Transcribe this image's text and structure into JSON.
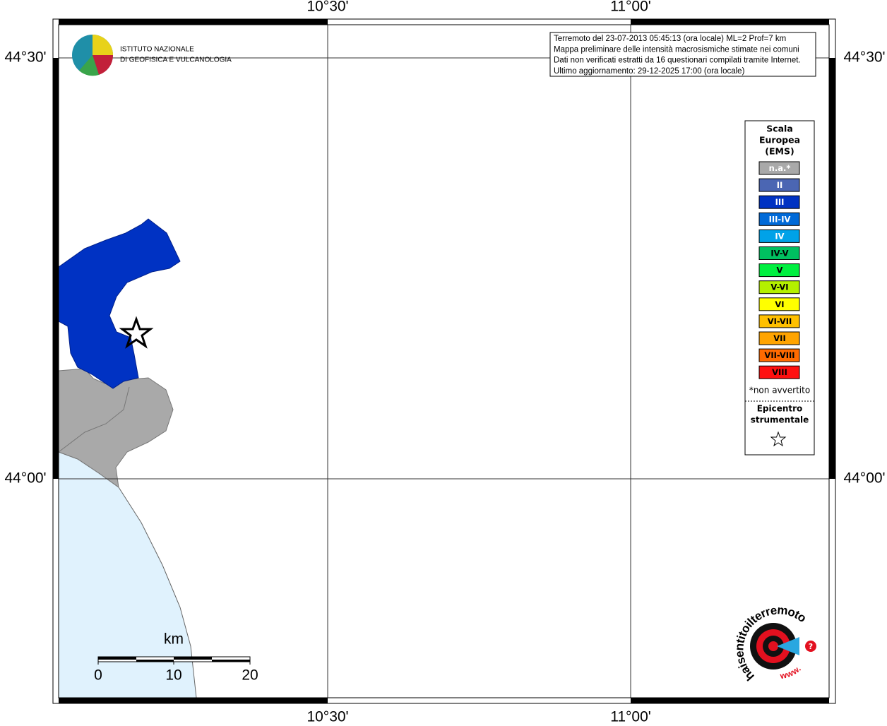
{
  "grid_labels": {
    "top": [
      "10°30'",
      "11°00'"
    ],
    "bottom": [
      "10°30'",
      "11°00'"
    ],
    "left": [
      "44°30'",
      "44°00'"
    ],
    "right": [
      "44°30'",
      "44°00'"
    ]
  },
  "logo": {
    "lines": [
      "ISTITUTO NAZIONALE",
      "DI GEOFISICA E VULCANOLOGIA"
    ]
  },
  "info": {
    "lines": [
      "Terremoto del 23-07-2013 05:45:13 (ora locale) ML=2 Prof=7 km",
      "Mappa preliminare delle intensità macrosismiche stimate nei comuni",
      "Dati non verificati estratti da 16 questionari compilati tramite Internet.",
      "Ultimo aggiornamento: 29-12-2025 17:00 (ora locale)"
    ]
  },
  "legend": {
    "title": [
      "Scala",
      "Europea",
      "(EMS)"
    ],
    "items": [
      {
        "label": "n.a.*",
        "color": "#a9a9a9"
      },
      {
        "label": "II",
        "color": "#4b66b3"
      },
      {
        "label": "III",
        "color": "#0032c3"
      },
      {
        "label": "III-IV",
        "color": "#006ad8"
      },
      {
        "label": "IV",
        "color": "#00a2e8"
      },
      {
        "label": "IV-V",
        "color": "#00c060"
      },
      {
        "label": "V",
        "color": "#00f040"
      },
      {
        "label": "V-VI",
        "color": "#b4f000"
      },
      {
        "label": "VI",
        "color": "#ffff00"
      },
      {
        "label": "VI-VII",
        "color": "#ffc000"
      },
      {
        "label": "VII",
        "color": "#ffa400"
      },
      {
        "label": "VII-VIII",
        "color": "#ff6a00"
      },
      {
        "label": "VIII",
        "color": "#ff1010"
      }
    ],
    "note": "*non avvertito",
    "epicenter": [
      "Epicentro",
      "strumentale"
    ]
  },
  "scale_bar": {
    "unit": "km",
    "labels": [
      "0",
      "10",
      "20"
    ]
  },
  "site_logo": {
    "text": "haisentitoilterremoto.it",
    "www": "www.",
    "mark": "?"
  }
}
